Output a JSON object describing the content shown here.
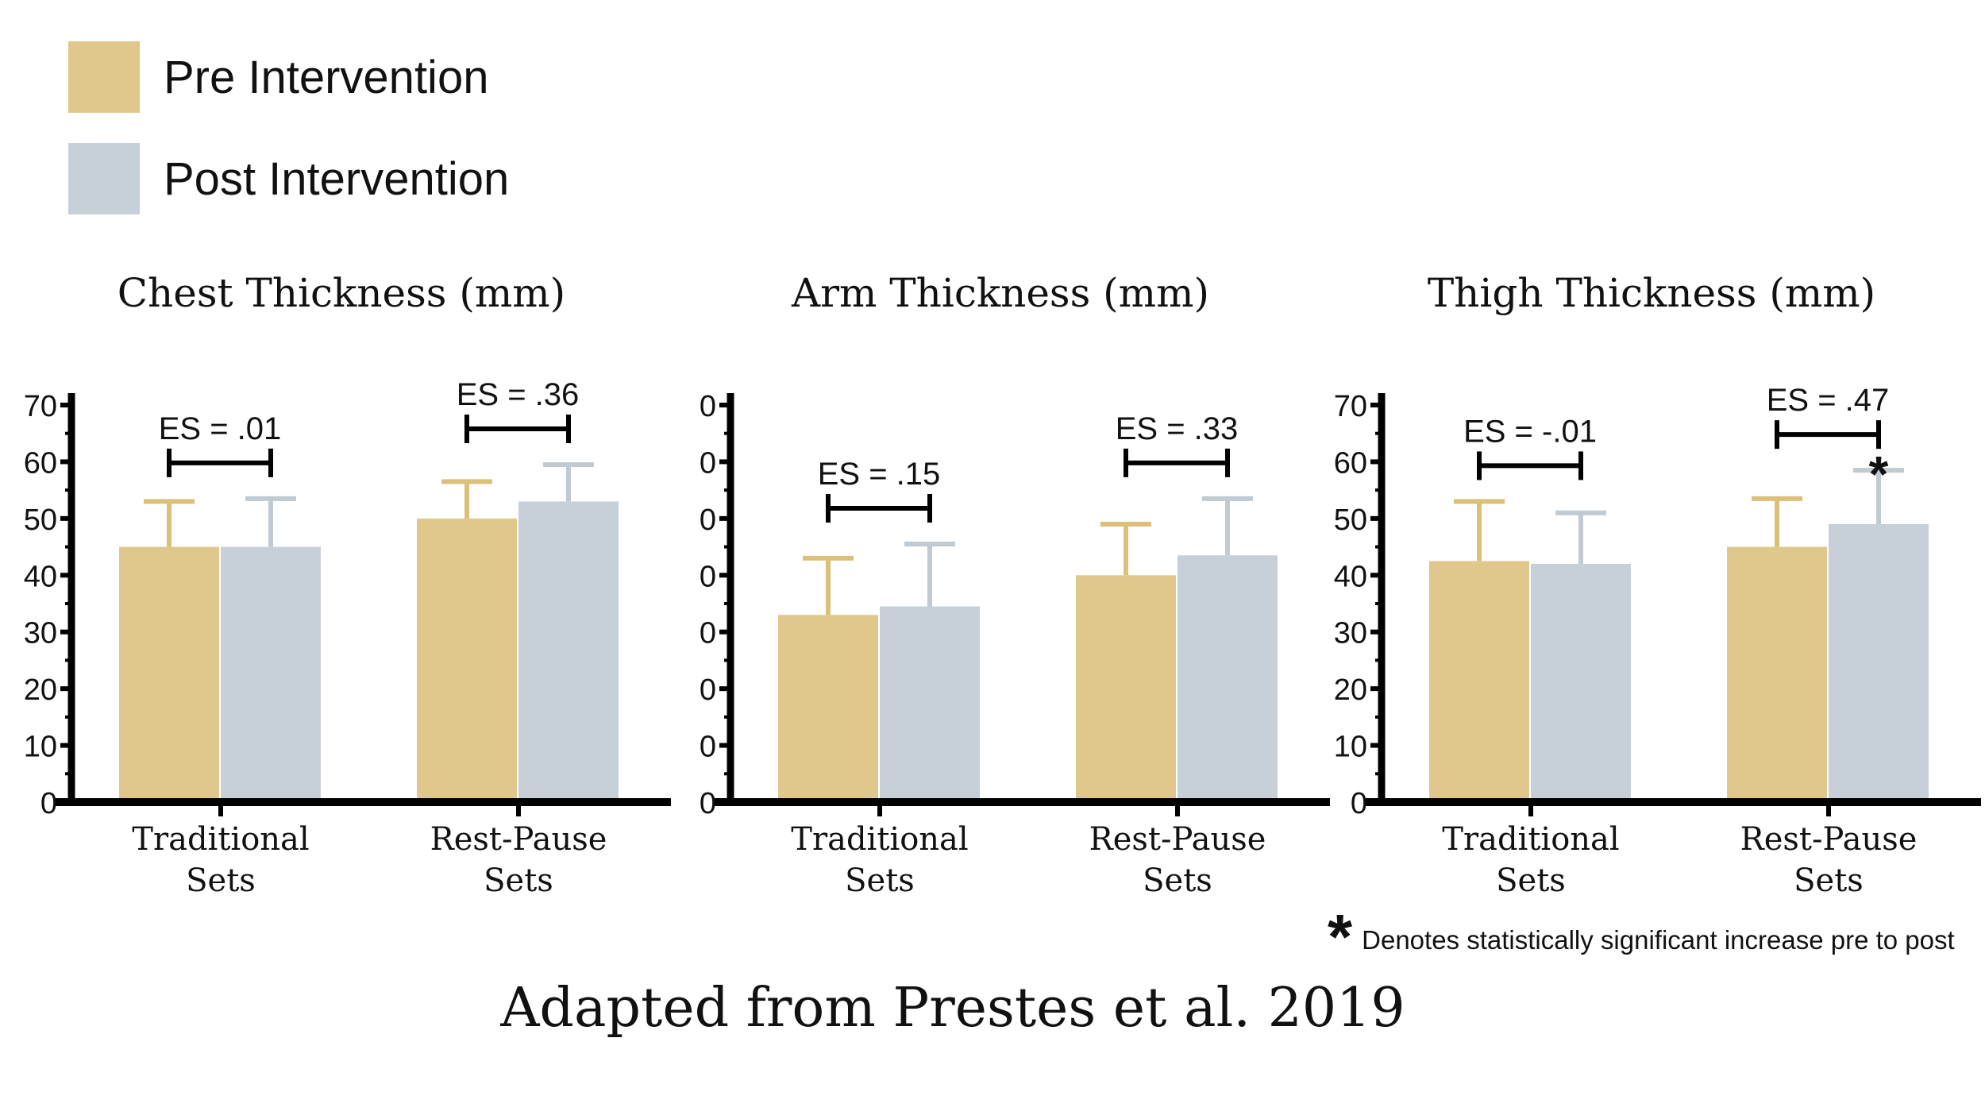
{
  "legend": [
    {
      "label": "Pre Intervention",
      "color": "#e0c88c"
    },
    {
      "label": "Post Intervention",
      "color": "#c7d0d8"
    }
  ],
  "chart_data": [
    {
      "type": "bar",
      "title": "Chest Thickness (mm)",
      "categories": [
        [
          "Traditional",
          "Sets"
        ],
        [
          "Rest-Pause",
          "Sets"
        ]
      ],
      "series": [
        {
          "values": [
            45,
            50
          ],
          "errors": [
            8,
            6.5
          ]
        },
        {
          "values": [
            45,
            53
          ],
          "errors": [
            8.5,
            6.5
          ]
        }
      ],
      "ylim": [
        0,
        70
      ],
      "yticks": [
        "0",
        "10",
        "20",
        "30",
        "40",
        "50",
        "60",
        "70"
      ],
      "es_labels": [
        "ES = .01",
        "ES = .36"
      ],
      "significant": [
        false,
        false
      ]
    },
    {
      "type": "bar",
      "title": "Arm Thickness (mm)",
      "categories": [
        [
          "Traditional",
          "Sets"
        ],
        [
          "Rest-Pause",
          "Sets"
        ]
      ],
      "series": [
        {
          "values": [
            33,
            40
          ],
          "errors": [
            10,
            9
          ]
        },
        {
          "values": [
            34.5,
            43.5
          ],
          "errors": [
            11,
            10
          ]
        }
      ],
      "ylim": [
        0,
        70
      ],
      "yticks": [
        "0",
        "0",
        "0",
        "0",
        "0",
        "0",
        "0",
        "0"
      ],
      "es_labels": [
        "ES = .15",
        "ES = .33"
      ],
      "significant": [
        false,
        false
      ]
    },
    {
      "type": "bar",
      "title": "Thigh Thickness (mm)",
      "categories": [
        [
          "Traditional",
          "Sets"
        ],
        [
          "Rest-Pause",
          "Sets"
        ]
      ],
      "series": [
        {
          "values": [
            42.5,
            45
          ],
          "errors": [
            10.5,
            8.5
          ]
        },
        {
          "values": [
            42,
            49
          ],
          "errors": [
            9,
            9.5
          ]
        }
      ],
      "ylim": [
        0,
        70
      ],
      "yticks": [
        "0",
        "10",
        "20",
        "30",
        "40",
        "50",
        "60",
        "70"
      ],
      "es_labels": [
        "ES = -.01",
        "ES = .47"
      ],
      "significant": [
        false,
        true
      ]
    }
  ],
  "footnote": {
    "symbol": "*",
    "text": "Denotes statistically significant increase pre to post"
  },
  "source": "Adapted from Prestes et al. 2019"
}
